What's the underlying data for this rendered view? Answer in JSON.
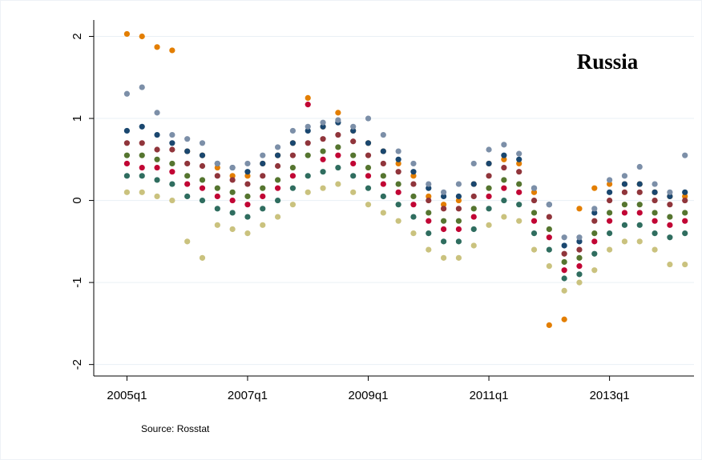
{
  "chart_data": {
    "type": "scatter",
    "title": "Russia",
    "note": "Source: Rosstat",
    "x": [
      180,
      181,
      182,
      183,
      184,
      185,
      186,
      187,
      188,
      189,
      190,
      191,
      192,
      193,
      194,
      195,
      196,
      197,
      198,
      199,
      200,
      201,
      202,
      203,
      204,
      205,
      206,
      207,
      208,
      209,
      210,
      211,
      212,
      213,
      214,
      215,
      216,
      217
    ],
    "xlim": [
      177.8,
      217.6
    ],
    "xticks": [
      {
        "value": 180,
        "label": "2005q1"
      },
      {
        "value": 188,
        "label": "2007q1"
      },
      {
        "value": 196,
        "label": "2009q1"
      },
      {
        "value": 204,
        "label": "2011q1"
      },
      {
        "value": 212,
        "label": "2013q1"
      }
    ],
    "ylim": [
      -2.14,
      2.2
    ],
    "yticks": [
      -2,
      -1,
      0,
      1,
      2
    ],
    "grid": true,
    "series": [
      {
        "color": "#e37e00",
        "values": [
          2.03,
          2.0,
          1.87,
          1.83,
          0.6,
          0.55,
          0.4,
          0.3,
          0.3,
          0.45,
          0.55,
          0.7,
          1.25,
          0.9,
          1.07,
          0.85,
          0.7,
          0.6,
          0.45,
          0.3,
          0.05,
          -0.05,
          0.0,
          0.2,
          0.45,
          0.5,
          0.45,
          0.1,
          -1.52,
          -1.45,
          -0.1,
          0.15,
          0.2,
          0.2,
          0.2,
          0.1,
          0.05,
          0.05
        ]
      },
      {
        "color": "#1a476f",
        "values": [
          0.85,
          0.9,
          0.8,
          0.7,
          0.6,
          0.55,
          0.45,
          0.4,
          0.35,
          0.45,
          0.55,
          0.7,
          0.85,
          0.9,
          0.95,
          0.85,
          0.7,
          0.6,
          0.5,
          0.35,
          0.15,
          0.05,
          0.05,
          0.2,
          0.45,
          0.55,
          0.5,
          0.15,
          -0.05,
          -0.55,
          -0.5,
          -0.15,
          0.1,
          0.2,
          0.2,
          0.1,
          0.05,
          0.1
        ]
      },
      {
        "color": "#90353b",
        "values": [
          0.7,
          0.7,
          0.62,
          0.62,
          0.45,
          0.42,
          0.3,
          0.25,
          0.2,
          0.3,
          0.42,
          0.55,
          0.7,
          0.75,
          0.8,
          0.72,
          0.55,
          0.45,
          0.35,
          0.2,
          0.0,
          -0.1,
          -0.1,
          0.05,
          0.3,
          0.4,
          0.35,
          0.0,
          -0.2,
          -0.65,
          -0.6,
          -0.25,
          0.0,
          0.1,
          0.1,
          0.0,
          -0.05,
          0.0
        ]
      },
      {
        "color": "#55752f",
        "values": [
          0.55,
          0.55,
          0.5,
          0.45,
          0.3,
          0.25,
          0.15,
          0.1,
          0.05,
          0.15,
          0.25,
          0.4,
          0.55,
          0.6,
          0.65,
          0.55,
          0.4,
          0.3,
          0.2,
          0.05,
          -0.15,
          -0.25,
          -0.25,
          -0.1,
          0.15,
          0.25,
          0.2,
          -0.15,
          -0.35,
          -0.75,
          -0.7,
          -0.4,
          -0.15,
          -0.05,
          -0.05,
          -0.15,
          -0.2,
          -0.15
        ]
      },
      {
        "color": "#c10534",
        "values": [
          0.45,
          0.4,
          0.4,
          0.35,
          0.2,
          0.15,
          0.05,
          0.0,
          -0.05,
          0.05,
          0.15,
          0.3,
          1.17,
          0.5,
          0.55,
          0.45,
          0.3,
          0.2,
          0.1,
          -0.05,
          -0.25,
          -0.35,
          -0.35,
          -0.2,
          0.05,
          0.15,
          0.1,
          -0.25,
          -0.45,
          -0.85,
          -0.8,
          -0.5,
          -0.25,
          -0.15,
          -0.15,
          -0.25,
          -0.3,
          -0.25
        ]
      },
      {
        "color": "#2f6d5f",
        "values": [
          0.3,
          0.3,
          0.25,
          0.2,
          0.05,
          0.0,
          -0.1,
          -0.15,
          -0.2,
          -0.1,
          0.0,
          0.15,
          0.3,
          0.35,
          0.4,
          0.3,
          0.15,
          0.05,
          -0.05,
          -0.2,
          -0.4,
          -0.5,
          -0.5,
          -0.35,
          -0.1,
          0.0,
          -0.05,
          -0.4,
          -0.6,
          -0.95,
          -0.9,
          -0.65,
          -0.4,
          -0.3,
          -0.3,
          -0.4,
          -0.45,
          -0.4
        ]
      },
      {
        "color": "#cac27e",
        "values": [
          0.1,
          0.1,
          0.05,
          0.0,
          -0.5,
          -0.7,
          -0.3,
          -0.35,
          -0.4,
          -0.3,
          -0.2,
          -0.05,
          0.1,
          0.15,
          0.2,
          0.1,
          -0.05,
          -0.15,
          -0.25,
          -0.4,
          -0.6,
          -0.7,
          -0.7,
          -0.55,
          -0.3,
          -0.2,
          -0.25,
          -0.6,
          -0.8,
          -1.1,
          -1.0,
          -0.85,
          -0.6,
          -0.5,
          -0.5,
          -0.6,
          -0.78,
          -0.78
        ]
      },
      {
        "color": "#7c8fa8",
        "values": [
          1.3,
          1.38,
          1.07,
          0.8,
          0.75,
          0.7,
          0.45,
          0.4,
          0.45,
          0.55,
          0.65,
          0.85,
          0.9,
          0.95,
          0.98,
          0.9,
          1.0,
          0.8,
          0.6,
          0.45,
          0.2,
          0.1,
          0.2,
          0.45,
          0.62,
          0.68,
          0.57,
          0.15,
          -0.05,
          -0.45,
          -0.45,
          -0.1,
          0.25,
          0.3,
          0.41,
          0.2,
          0.1,
          0.55
        ]
      }
    ]
  }
}
